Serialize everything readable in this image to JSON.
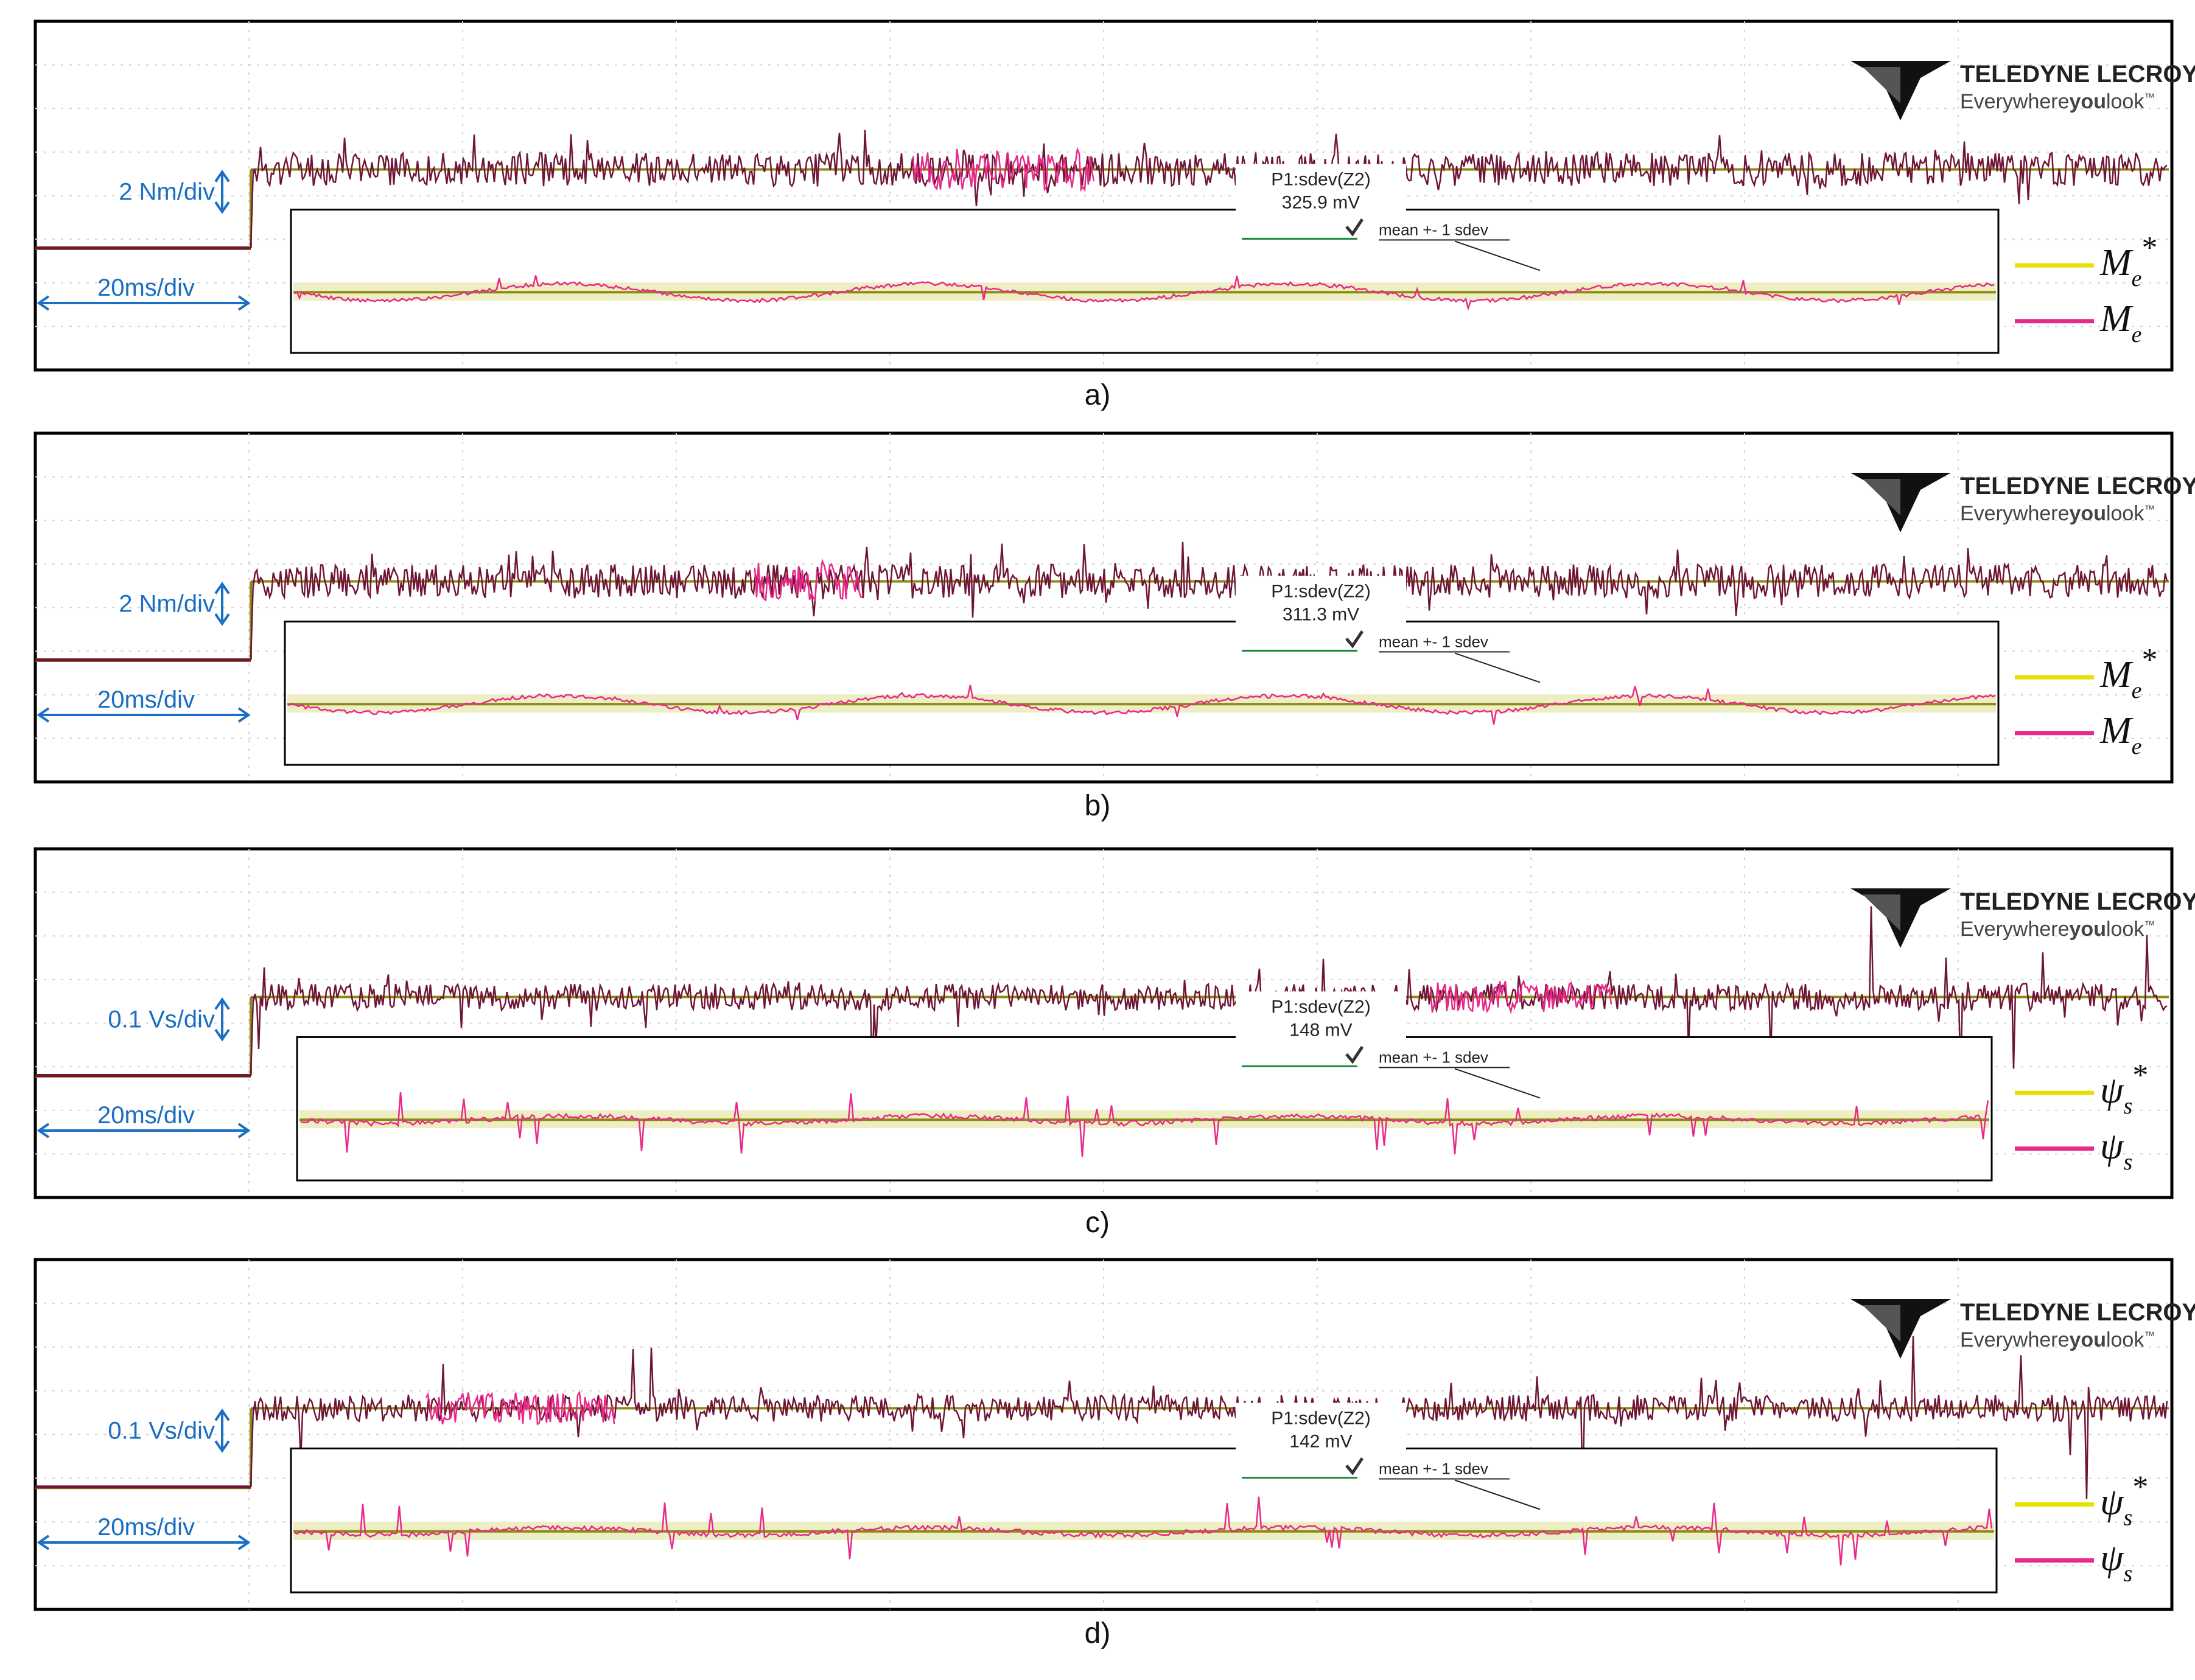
{
  "brand": {
    "name": "TELEDYNE LECROY",
    "tagline_pre": "Everywhere",
    "tagline_bold": "you",
    "tagline_post": "look",
    "tm": "™"
  },
  "colors": {
    "reference": "#e8e000",
    "reference_dark": "#8c8a10",
    "measured": "#e8288a",
    "measured_dark": "#6e1436",
    "grid": "#d4d4d4",
    "annotation": "#1a6fc4",
    "frame": "#000000",
    "stat_line": "#1a8a3a"
  },
  "chart_data": [
    {
      "type": "line",
      "caption": "a)",
      "vertical_scale": "2 Nm/div",
      "time_scale": "20ms/div",
      "measurement": {
        "label": "P1:sdev(Z2)",
        "value": "325.9 mV",
        "stat": "mean +- 1 sdev"
      },
      "series": [
        {
          "name": "M_e^*",
          "symbol": "M",
          "subscript": "e",
          "superscript": "*",
          "color": "#e8e000"
        },
        {
          "name": "M_e",
          "symbol": "M",
          "subscript": "e",
          "superscript": "",
          "color": "#e8288a"
        }
      ],
      "step": {
        "pre_level_div": -1.2,
        "post_level_div": 0.6
      }
    },
    {
      "type": "line",
      "caption": "b)",
      "vertical_scale": "2 Nm/div",
      "time_scale": "20ms/div",
      "measurement": {
        "label": "P1:sdev(Z2)",
        "value": "311.3 mV",
        "stat": "mean +- 1 sdev"
      },
      "series": [
        {
          "name": "M_e^*",
          "symbol": "M",
          "subscript": "e",
          "superscript": "*",
          "color": "#e8e000"
        },
        {
          "name": "M_e",
          "symbol": "M",
          "subscript": "e",
          "superscript": "",
          "color": "#e8288a"
        }
      ],
      "step": {
        "pre_level_div": -1.2,
        "post_level_div": 0.6
      }
    },
    {
      "type": "line",
      "caption": "c)",
      "vertical_scale": "0.1 Vs/div",
      "time_scale": "20ms/div",
      "measurement": {
        "label": "P1:sdev(Z2)",
        "value": "148 mV",
        "stat": "mean +- 1 sdev"
      },
      "series": [
        {
          "name": "ψ_s^*",
          "symbol": "ψ",
          "subscript": "s",
          "superscript": "*",
          "color": "#e8e000"
        },
        {
          "name": "ψ_s",
          "symbol": "ψ",
          "subscript": "s",
          "superscript": "",
          "color": "#e8288a"
        }
      ],
      "step": {
        "pre_level_div": -1.2,
        "post_level_div": 0.6
      }
    },
    {
      "type": "line",
      "caption": "d)",
      "vertical_scale": "0.1 Vs/div",
      "time_scale": "20ms/div",
      "measurement": {
        "label": "P1:sdev(Z2)",
        "value": "142 mV",
        "stat": "mean +- 1 sdev"
      },
      "series": [
        {
          "name": "ψ_s^*",
          "symbol": "ψ",
          "subscript": "s",
          "superscript": "*",
          "color": "#e8e000"
        },
        {
          "name": "ψ_s",
          "symbol": "ψ",
          "subscript": "s",
          "superscript": "",
          "color": "#e8288a"
        }
      ],
      "step": {
        "pre_level_div": -1.2,
        "post_level_div": 0.6
      }
    }
  ]
}
